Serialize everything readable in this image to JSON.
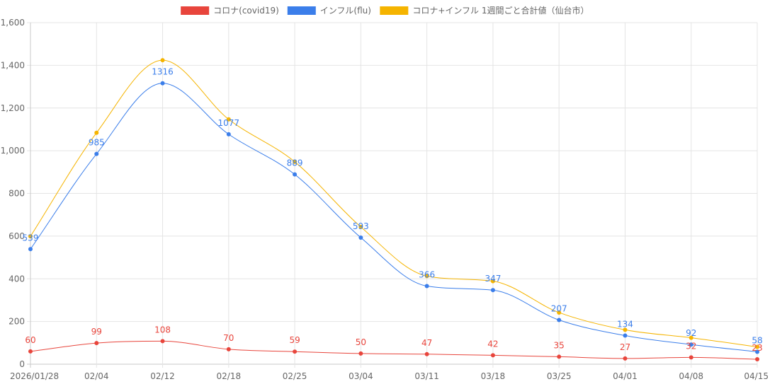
{
  "chart_data": {
    "type": "line",
    "title": "",
    "xlabel": "",
    "ylabel": "",
    "ylim": [
      0,
      1600
    ],
    "yticks": [
      0,
      200,
      400,
      600,
      800,
      1000,
      1200,
      1400,
      1600
    ],
    "ytick_labels": [
      "0",
      "200",
      "400",
      "600",
      "800",
      "1,000",
      "1,200",
      "1,400",
      "1,600"
    ],
    "grid": true,
    "legend_position": "top-center",
    "categories": [
      "2026/01/28",
      "02/04",
      "02/12",
      "02/18",
      "02/25",
      "03/04",
      "03/11",
      "03/18",
      "03/25",
      "04/01",
      "04/08",
      "04/15"
    ],
    "series": [
      {
        "name": "コロナ(covid19)",
        "color": "#e8453c",
        "values": [
          60,
          99,
          108,
          70,
          59,
          50,
          47,
          42,
          35,
          27,
          32,
          23
        ],
        "show_labels": true
      },
      {
        "name": "インフル(flu)",
        "color": "#3b7eea",
        "values": [
          539,
          985,
          1316,
          1077,
          889,
          593,
          366,
          347,
          207,
          134,
          92,
          58
        ],
        "show_labels": true
      },
      {
        "name": "コロナ+インフル 1週間ごと合計値（仙台市）",
        "color": "#f5b400",
        "values": [
          599,
          1084,
          1424,
          1147,
          948,
          643,
          413,
          389,
          242,
          161,
          124,
          81
        ],
        "show_labels": false
      }
    ]
  }
}
